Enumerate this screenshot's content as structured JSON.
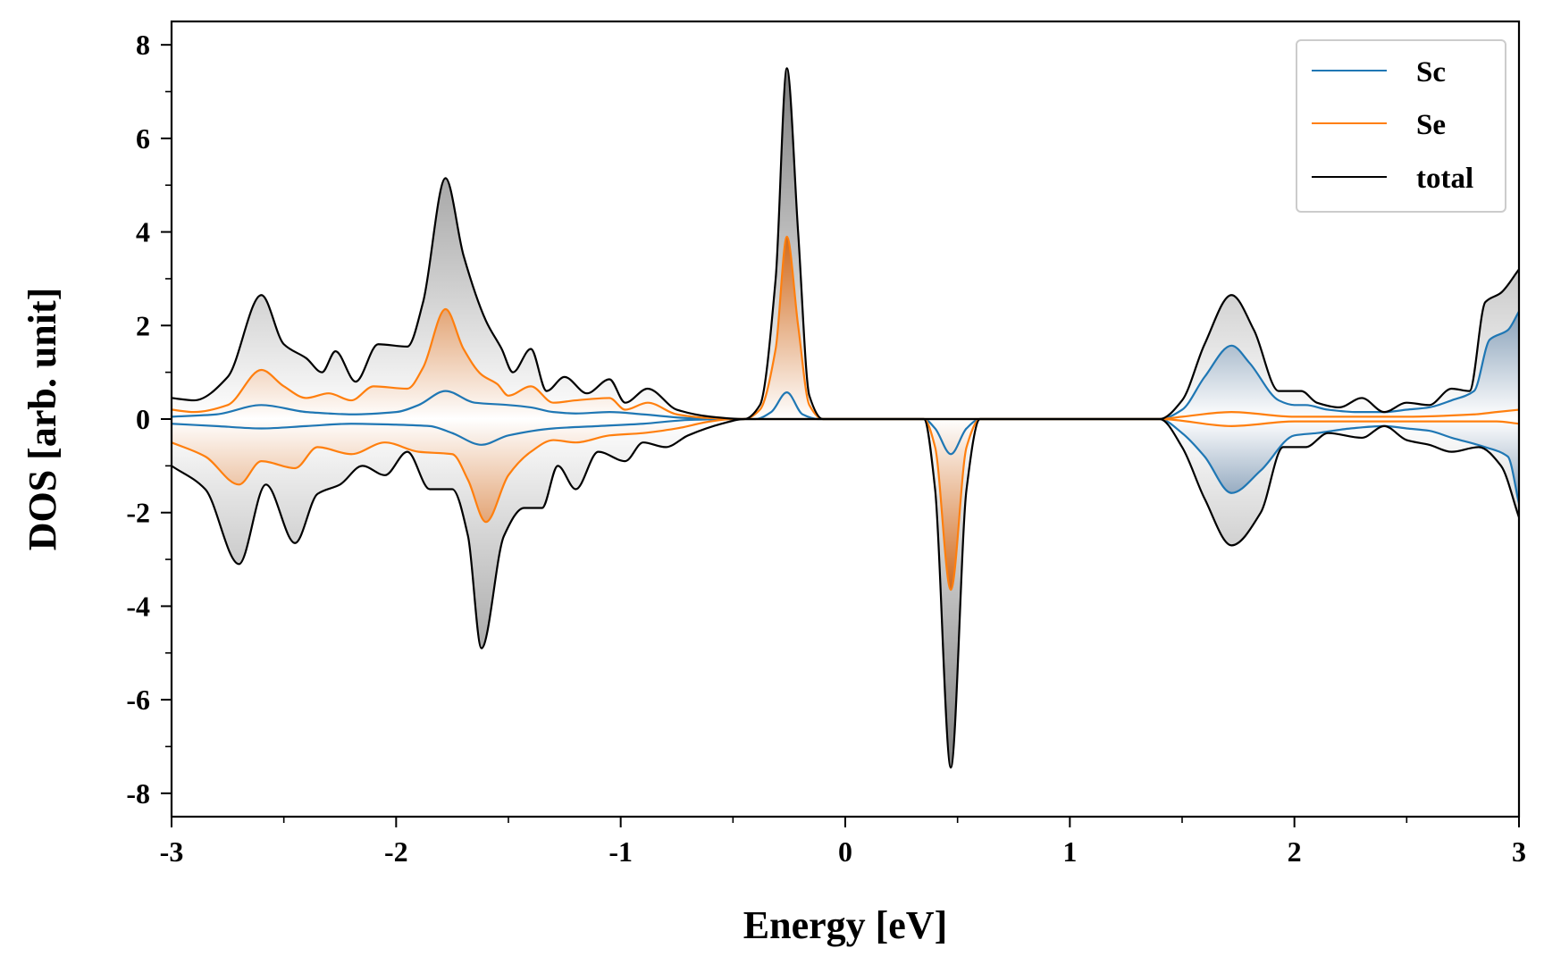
{
  "chart_data": {
    "type": "area",
    "title": "",
    "xlabel": "Energy [eV]",
    "ylabel": "DOS [arb. unit]",
    "xlim": [
      -3,
      3
    ],
    "ylim": [
      -8.5,
      8.5
    ],
    "xticks": [
      -3,
      -2,
      -1,
      0,
      1,
      2,
      3
    ],
    "xtick_labels": [
      "-3",
      "-2",
      "-1",
      "0",
      "1",
      "2",
      "3"
    ],
    "yticks": [
      -8,
      -6,
      -4,
      -2,
      0,
      2,
      4,
      6,
      8
    ],
    "ytick_labels": [
      "-8",
      "-6",
      "-4",
      "-2",
      "0",
      "2",
      "4",
      "6",
      "8"
    ],
    "legend_position": "top-right",
    "legend": [
      "Sc",
      "Se",
      "total"
    ],
    "series": [
      {
        "name": "Sc",
        "color": "#1f77b4",
        "up": [
          [
            -3,
            0.05
          ],
          [
            -2.8,
            0.1
          ],
          [
            -2.6,
            0.3
          ],
          [
            -2.4,
            0.15
          ],
          [
            -2.3,
            0.12
          ],
          [
            -2.2,
            0.1
          ],
          [
            -2,
            0.15
          ],
          [
            -1.9,
            0.3
          ],
          [
            -1.78,
            0.6
          ],
          [
            -1.65,
            0.35
          ],
          [
            -1.5,
            0.3
          ],
          [
            -1.4,
            0.25
          ],
          [
            -1.3,
            0.15
          ],
          [
            -1.2,
            0.12
          ],
          [
            -1.05,
            0.15
          ],
          [
            -0.9,
            0.1
          ],
          [
            -0.7,
            0.02
          ],
          [
            -0.5,
            0.0
          ],
          [
            -0.4,
            0.0
          ],
          [
            -0.33,
            0.15
          ],
          [
            -0.26,
            0.57
          ],
          [
            -0.19,
            0.1
          ],
          [
            -0.12,
            0.0
          ],
          [
            1.4,
            0.0
          ],
          [
            1.5,
            0.2
          ],
          [
            1.6,
            0.9
          ],
          [
            1.72,
            1.57
          ],
          [
            1.8,
            1.2
          ],
          [
            1.93,
            0.4
          ],
          [
            2.0,
            0.3
          ],
          [
            2.05,
            0.3
          ],
          [
            2.15,
            0.2
          ],
          [
            2.28,
            0.15
          ],
          [
            2.4,
            0.15
          ],
          [
            2.5,
            0.2
          ],
          [
            2.6,
            0.25
          ],
          [
            2.7,
            0.4
          ],
          [
            2.8,
            0.6
          ],
          [
            2.87,
            1.7
          ],
          [
            2.95,
            1.9
          ],
          [
            3,
            2.3
          ]
        ],
        "down": [
          [
            -3,
            -0.1
          ],
          [
            -2.8,
            -0.15
          ],
          [
            -2.6,
            -0.2
          ],
          [
            -2.4,
            -0.15
          ],
          [
            -2.2,
            -0.1
          ],
          [
            -2,
            -0.12
          ],
          [
            -1.85,
            -0.15
          ],
          [
            -1.75,
            -0.3
          ],
          [
            -1.62,
            -0.55
          ],
          [
            -1.5,
            -0.35
          ],
          [
            -1.3,
            -0.2
          ],
          [
            -1.1,
            -0.15
          ],
          [
            -0.9,
            -0.1
          ],
          [
            -0.7,
            -0.02
          ],
          [
            -0.5,
            0.0
          ],
          [
            0.35,
            0.0
          ],
          [
            0.4,
            -0.2
          ],
          [
            0.47,
            -0.75
          ],
          [
            0.54,
            -0.2
          ],
          [
            0.6,
            0.0
          ],
          [
            1.4,
            0.0
          ],
          [
            1.5,
            -0.3
          ],
          [
            1.6,
            -0.8
          ],
          [
            1.72,
            -1.58
          ],
          [
            1.85,
            -1.1
          ],
          [
            2.0,
            -0.35
          ],
          [
            2.1,
            -0.3
          ],
          [
            2.25,
            -0.2
          ],
          [
            2.4,
            -0.15
          ],
          [
            2.5,
            -0.2
          ],
          [
            2.6,
            -0.25
          ],
          [
            2.7,
            -0.4
          ],
          [
            2.85,
            -0.6
          ],
          [
            2.95,
            -0.8
          ],
          [
            3,
            -1.8
          ]
        ]
      },
      {
        "name": "Se",
        "color": "#ff7f0e",
        "up": [
          [
            -3,
            0.2
          ],
          [
            -2.9,
            0.15
          ],
          [
            -2.75,
            0.3
          ],
          [
            -2.6,
            1.05
          ],
          [
            -2.5,
            0.7
          ],
          [
            -2.4,
            0.45
          ],
          [
            -2.3,
            0.55
          ],
          [
            -2.2,
            0.4
          ],
          [
            -2.1,
            0.7
          ],
          [
            -1.95,
            0.65
          ],
          [
            -1.88,
            1.1
          ],
          [
            -1.78,
            2.35
          ],
          [
            -1.7,
            1.5
          ],
          [
            -1.62,
            0.95
          ],
          [
            -1.55,
            0.75
          ],
          [
            -1.5,
            0.5
          ],
          [
            -1.4,
            0.7
          ],
          [
            -1.3,
            0.35
          ],
          [
            -1.2,
            0.4
          ],
          [
            -1.05,
            0.45
          ],
          [
            -0.98,
            0.2
          ],
          [
            -0.88,
            0.35
          ],
          [
            -0.75,
            0.1
          ],
          [
            -0.6,
            0.02
          ],
          [
            -0.45,
            0.0
          ],
          [
            -0.38,
            0.2
          ],
          [
            -0.31,
            1.5
          ],
          [
            -0.26,
            3.9
          ],
          [
            -0.21,
            2.0
          ],
          [
            -0.16,
            0.3
          ],
          [
            -0.1,
            0.0
          ],
          [
            1.4,
            0.0
          ],
          [
            1.5,
            0.05
          ],
          [
            1.72,
            0.15
          ],
          [
            2.0,
            0.05
          ],
          [
            2.3,
            0.05
          ],
          [
            2.5,
            0.05
          ],
          [
            2.8,
            0.1
          ],
          [
            2.9,
            0.15
          ],
          [
            3,
            0.2
          ]
        ],
        "down": [
          [
            -3,
            -0.5
          ],
          [
            -2.85,
            -0.8
          ],
          [
            -2.7,
            -1.4
          ],
          [
            -2.6,
            -0.9
          ],
          [
            -2.45,
            -1.05
          ],
          [
            -2.35,
            -0.6
          ],
          [
            -2.2,
            -0.75
          ],
          [
            -2.05,
            -0.5
          ],
          [
            -1.9,
            -0.7
          ],
          [
            -1.75,
            -0.75
          ],
          [
            -1.68,
            -1.3
          ],
          [
            -1.6,
            -2.2
          ],
          [
            -1.5,
            -1.2
          ],
          [
            -1.4,
            -0.7
          ],
          [
            -1.3,
            -0.45
          ],
          [
            -1.2,
            -0.5
          ],
          [
            -1.05,
            -0.35
          ],
          [
            -0.9,
            -0.3
          ],
          [
            -0.75,
            -0.2
          ],
          [
            -0.6,
            -0.05
          ],
          [
            -0.5,
            0.0
          ],
          [
            0.35,
            0.0
          ],
          [
            0.4,
            -0.6
          ],
          [
            0.47,
            -3.65
          ],
          [
            0.54,
            -0.6
          ],
          [
            0.6,
            0.0
          ],
          [
            1.4,
            0.0
          ],
          [
            1.72,
            -0.15
          ],
          [
            2.0,
            -0.05
          ],
          [
            2.5,
            -0.05
          ],
          [
            2.9,
            -0.05
          ],
          [
            3,
            -0.1
          ]
        ]
      },
      {
        "name": "total",
        "color": "#000000",
        "up": [
          [
            -3,
            0.45
          ],
          [
            -2.9,
            0.4
          ],
          [
            -2.75,
            0.9
          ],
          [
            -2.6,
            2.65
          ],
          [
            -2.5,
            1.6
          ],
          [
            -2.4,
            1.3
          ],
          [
            -2.33,
            1.0
          ],
          [
            -2.27,
            1.45
          ],
          [
            -2.18,
            0.8
          ],
          [
            -2.08,
            1.6
          ],
          [
            -1.95,
            1.55
          ],
          [
            -1.88,
            2.5
          ],
          [
            -1.78,
            5.15
          ],
          [
            -1.7,
            3.5
          ],
          [
            -1.6,
            2.1
          ],
          [
            -1.53,
            1.5
          ],
          [
            -1.48,
            1.0
          ],
          [
            -1.4,
            1.5
          ],
          [
            -1.33,
            0.6
          ],
          [
            -1.25,
            0.9
          ],
          [
            -1.15,
            0.55
          ],
          [
            -1.05,
            0.85
          ],
          [
            -0.98,
            0.35
          ],
          [
            -0.88,
            0.65
          ],
          [
            -0.75,
            0.2
          ],
          [
            -0.6,
            0.05
          ],
          [
            -0.45,
            0.0
          ],
          [
            -0.38,
            0.3
          ],
          [
            -0.31,
            3.0
          ],
          [
            -0.26,
            7.5
          ],
          [
            -0.21,
            4.0
          ],
          [
            -0.16,
            0.5
          ],
          [
            -0.1,
            0.0
          ],
          [
            1.4,
            0.0
          ],
          [
            1.5,
            0.4
          ],
          [
            1.6,
            1.6
          ],
          [
            1.72,
            2.65
          ],
          [
            1.82,
            1.9
          ],
          [
            1.93,
            0.6
          ],
          [
            2.03,
            0.6
          ],
          [
            2.1,
            0.35
          ],
          [
            2.2,
            0.25
          ],
          [
            2.3,
            0.45
          ],
          [
            2.4,
            0.15
          ],
          [
            2.5,
            0.35
          ],
          [
            2.6,
            0.3
          ],
          [
            2.7,
            0.65
          ],
          [
            2.78,
            0.6
          ],
          [
            2.85,
            2.5
          ],
          [
            2.92,
            2.7
          ],
          [
            3,
            3.2
          ]
        ],
        "down": [
          [
            -3,
            -1.0
          ],
          [
            -2.85,
            -1.5
          ],
          [
            -2.7,
            -3.1
          ],
          [
            -2.58,
            -1.4
          ],
          [
            -2.45,
            -2.65
          ],
          [
            -2.35,
            -1.6
          ],
          [
            -2.25,
            -1.4
          ],
          [
            -2.15,
            -1.0
          ],
          [
            -2.05,
            -1.2
          ],
          [
            -1.95,
            -0.7
          ],
          [
            -1.85,
            -1.5
          ],
          [
            -1.75,
            -1.5
          ],
          [
            -1.68,
            -2.5
          ],
          [
            -1.62,
            -4.9
          ],
          [
            -1.52,
            -2.5
          ],
          [
            -1.43,
            -1.9
          ],
          [
            -1.35,
            -1.9
          ],
          [
            -1.28,
            -1.0
          ],
          [
            -1.2,
            -1.5
          ],
          [
            -1.1,
            -0.7
          ],
          [
            -0.98,
            -0.9
          ],
          [
            -0.9,
            -0.5
          ],
          [
            -0.8,
            -0.6
          ],
          [
            -0.7,
            -0.35
          ],
          [
            -0.55,
            -0.1
          ],
          [
            -0.45,
            0.0
          ],
          [
            0.35,
            0.0
          ],
          [
            0.4,
            -1.5
          ],
          [
            0.47,
            -7.45
          ],
          [
            0.54,
            -1.5
          ],
          [
            0.6,
            0.0
          ],
          [
            1.4,
            0.0
          ],
          [
            1.5,
            -0.6
          ],
          [
            1.6,
            -1.7
          ],
          [
            1.72,
            -2.7
          ],
          [
            1.85,
            -2.0
          ],
          [
            1.95,
            -0.6
          ],
          [
            2.05,
            -0.6
          ],
          [
            2.15,
            -0.3
          ],
          [
            2.3,
            -0.4
          ],
          [
            2.4,
            -0.15
          ],
          [
            2.5,
            -0.45
          ],
          [
            2.6,
            -0.55
          ],
          [
            2.7,
            -0.7
          ],
          [
            2.82,
            -0.6
          ],
          [
            2.92,
            -1.0
          ],
          [
            3,
            -2.1
          ]
        ]
      }
    ]
  }
}
